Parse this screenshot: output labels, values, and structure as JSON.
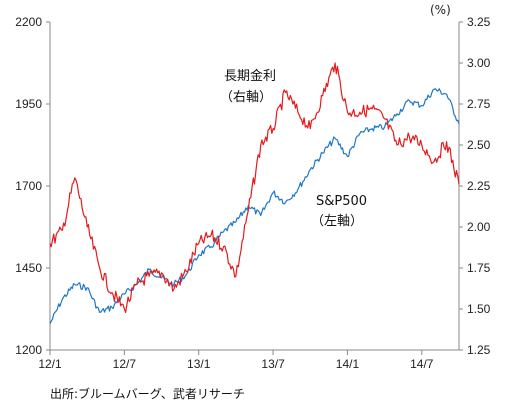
{
  "chart_data": {
    "type": "line",
    "title": "",
    "x_ticks": [
      "12/1",
      "12/7",
      "13/1",
      "13/7",
      "14/1",
      "14/7"
    ],
    "x_range": [
      "2012-01",
      "2014-10"
    ],
    "y_left": {
      "ticks": [
        "1200",
        "1450",
        "1700",
        "1950",
        "2200"
      ],
      "range": [
        1200,
        2200
      ]
    },
    "y_right": {
      "unit": "(%)",
      "ticks": [
        "1.25",
        "1.50",
        "1.75",
        "2.00",
        "2.25",
        "2.50",
        "2.75",
        "3.00",
        "3.25"
      ],
      "range": [
        1.25,
        3.25
      ]
    },
    "grid": false,
    "series": [
      {
        "name": "S&P500",
        "axis_label": "（左軸）",
        "axis": "left",
        "color": "#1f77c4",
        "points": [
          [
            "2012-01",
            1280
          ],
          [
            "2012-02",
            1355
          ],
          [
            "2012-03",
            1400
          ],
          [
            "2012-04",
            1390
          ],
          [
            "2012-05",
            1315
          ],
          [
            "2012-06",
            1330
          ],
          [
            "2012-07",
            1370
          ],
          [
            "2012-08",
            1400
          ],
          [
            "2012-09",
            1445
          ],
          [
            "2012-10",
            1420
          ],
          [
            "2012-11",
            1400
          ],
          [
            "2012-12",
            1430
          ],
          [
            "2013-01",
            1490
          ],
          [
            "2013-02",
            1515
          ],
          [
            "2013-03",
            1560
          ],
          [
            "2013-04",
            1590
          ],
          [
            "2013-05",
            1640
          ],
          [
            "2013-06",
            1610
          ],
          [
            "2013-07",
            1680
          ],
          [
            "2013-08",
            1650
          ],
          [
            "2013-09",
            1690
          ],
          [
            "2013-10",
            1750
          ],
          [
            "2013-11",
            1800
          ],
          [
            "2013-12",
            1845
          ],
          [
            "2014-01",
            1790
          ],
          [
            "2014-02",
            1860
          ],
          [
            "2014-03",
            1875
          ],
          [
            "2014-04",
            1880
          ],
          [
            "2014-05",
            1920
          ],
          [
            "2014-06",
            1960
          ],
          [
            "2014-07",
            1945
          ],
          [
            "2014-08",
            1995
          ],
          [
            "2014-09",
            1980
          ],
          [
            "2014-10",
            1890
          ]
        ]
      },
      {
        "name": "長期金利",
        "axis_label": "（右軸）",
        "axis": "right",
        "color": "#e41a1c",
        "points": [
          [
            "2012-01",
            1.9
          ],
          [
            "2012-02",
            1.98
          ],
          [
            "2012-03",
            2.3
          ],
          [
            "2012-04",
            2.0
          ],
          [
            "2012-05",
            1.75
          ],
          [
            "2012-06",
            1.6
          ],
          [
            "2012-07",
            1.5
          ],
          [
            "2012-08",
            1.65
          ],
          [
            "2012-09",
            1.7
          ],
          [
            "2012-10",
            1.72
          ],
          [
            "2012-11",
            1.62
          ],
          [
            "2012-12",
            1.73
          ],
          [
            "2013-01",
            1.9
          ],
          [
            "2013-02",
            1.95
          ],
          [
            "2013-03",
            1.88
          ],
          [
            "2013-04",
            1.7
          ],
          [
            "2013-05",
            2.1
          ],
          [
            "2013-06",
            2.5
          ],
          [
            "2013-07",
            2.6
          ],
          [
            "2013-08",
            2.82
          ],
          [
            "2013-09",
            2.7
          ],
          [
            "2013-10",
            2.6
          ],
          [
            "2013-11",
            2.8
          ],
          [
            "2013-12",
            3.0
          ],
          [
            "2014-01",
            2.7
          ],
          [
            "2014-02",
            2.7
          ],
          [
            "2014-03",
            2.72
          ],
          [
            "2014-04",
            2.66
          ],
          [
            "2014-05",
            2.5
          ],
          [
            "2014-06",
            2.55
          ],
          [
            "2014-07",
            2.5
          ],
          [
            "2014-08",
            2.4
          ],
          [
            "2014-09",
            2.52
          ],
          [
            "2014-10",
            2.26
          ]
        ]
      }
    ]
  },
  "source": "出所:ブルームバーグ、武者リサーチ"
}
